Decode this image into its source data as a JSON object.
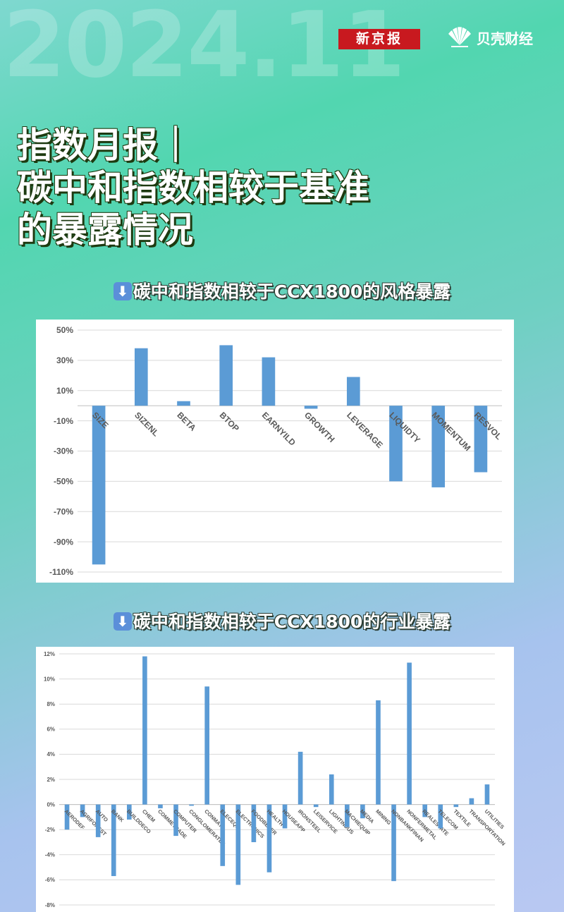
{
  "header": {
    "big_date": "2024.11",
    "brand_xjb": "新京报",
    "brand_bk": "贝壳财经"
  },
  "headline": {
    "lines": [
      "指数月报｜",
      "碳中和指数相较于基准",
      "的暴露情况"
    ]
  },
  "sections": {
    "style_title": "碳中和指数相较于CCX1800的风格暴露",
    "industry_title": "碳中和指数相较于CCX1800的行业暴露"
  },
  "colors": {
    "bar": "#5b9bd5",
    "grid": "#d9d9d9",
    "tick": "#595959"
  },
  "chart_data": [
    {
      "type": "bar",
      "title": "",
      "categories": [
        "SIZE",
        "SIZENL",
        "BETA",
        "BTOP",
        "EARNYILD",
        "GROWTH",
        "LEVERAGE",
        "LIQUIDTY",
        "MOMENTUM",
        "RESVOL"
      ],
      "values": [
        -105,
        38,
        3,
        40,
        32,
        -2,
        19,
        -50,
        -54,
        -44
      ],
      "unit": "%",
      "ylim": [
        -110,
        50
      ],
      "yticks": [
        50,
        30,
        10,
        -10,
        -30,
        -50,
        -70,
        -90,
        -110
      ],
      "ytick_labels": [
        "50%",
        "30%",
        "10%",
        "-10%",
        "-30%",
        "-50%",
        "-70%",
        "-90%",
        "-110%"
      ],
      "grid": true,
      "legend": "none"
    },
    {
      "type": "bar",
      "title": "",
      "categories": [
        "AERODEF",
        "AGRIFOREST",
        "AUTO",
        "BANK",
        "BUILDDECO",
        "CHEM",
        "COMMETRADE",
        "COMPUTER",
        "CONGLOMERATES",
        "CONMAT",
        "ELECEQP",
        "ELECTRONICS",
        "FOODBEVER",
        "HEALTH",
        "HOUSEAPP",
        "IRONSTEEL",
        "LEISERVICE",
        "LIGHTINDUS",
        "MACHIEQUIP",
        "MEDIA",
        "MINING",
        "NONBANKFINAN",
        "NONFERMETAL",
        "REALESTATE",
        "TELECOM",
        "TEXTILE",
        "TRANSPORTATION",
        "UTILITIES"
      ],
      "values": [
        -2.0,
        -1.0,
        -2.6,
        -5.7,
        -1.2,
        11.8,
        -0.3,
        -2.5,
        -0.1,
        9.4,
        -4.9,
        -6.4,
        -3.0,
        -5.4,
        -1.9,
        4.2,
        -0.2,
        2.4,
        -1.8,
        -1.1,
        8.3,
        -6.1,
        11.3,
        -1.0,
        -1.9,
        -0.2,
        0.5,
        1.6
      ],
      "unit": "%",
      "ylim": [
        -8,
        12
      ],
      "yticks": [
        12,
        10,
        8,
        6,
        4,
        2,
        0,
        -2,
        -4,
        -6,
        -8
      ],
      "ytick_labels": [
        "12%",
        "10%",
        "8%",
        "6%",
        "4%",
        "2%",
        "0%",
        "-2%",
        "-4%",
        "-6%",
        "-8%"
      ],
      "grid": true,
      "legend": "none"
    }
  ]
}
